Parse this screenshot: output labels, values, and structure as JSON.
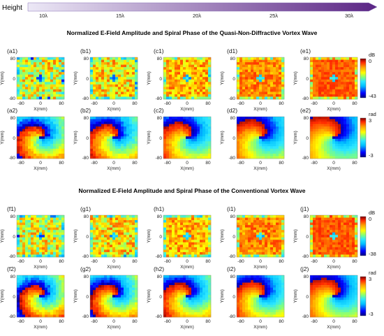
{
  "height_axis": {
    "label": "Height",
    "ticks": [
      "10λ",
      "15λ",
      "20λ",
      "25λ",
      "30λ"
    ]
  },
  "sections": [
    {
      "title": "Normalized E-Field Amplitude and Spiral Phase of the Quasi-Non-Diffractive Vortex Wave",
      "amplitude_panels": [
        "(a1)",
        "(b1)",
        "(c1)",
        "(d1)",
        "(e1)"
      ],
      "phase_panels": [
        "(a2)",
        "(b2)",
        "(c2)",
        "(d2)",
        "(e2)"
      ],
      "amplitude_colorbar": {
        "unit": "dB",
        "max": "0",
        "min": "-43"
      },
      "phase_colorbar": {
        "unit": "rad",
        "max": "3",
        "min": "-3"
      }
    },
    {
      "title": "Normalized E-Field Amplitude and Spiral Phase of the Conventional Vortex Wave",
      "amplitude_panels": [
        "(f1)",
        "(g1)",
        "(h1)",
        "(i1)",
        "(j1)"
      ],
      "phase_panels": [
        "(f2)",
        "(g2)",
        "(h2)",
        "(i2)",
        "(j2)"
      ],
      "amplitude_colorbar": {
        "unit": "dB",
        "max": "0",
        "min": "-38"
      },
      "phase_colorbar": {
        "unit": "rad",
        "max": "3",
        "min": "-3"
      }
    }
  ],
  "axes": {
    "xlabel": "X(mm)",
    "ylabel": "Y(mm)",
    "xticks": [
      "-80",
      "0",
      "80"
    ],
    "yticks": [
      "80",
      "0",
      "-80"
    ]
  },
  "colors": {
    "colormap": [
      "#00007f",
      "#0000ff",
      "#00bfff",
      "#2ee8ff",
      "#7fff7f",
      "#ffff00",
      "#ff9f00",
      "#ff2a00",
      "#800000"
    ],
    "height_arrow_start": "#ece8f6",
    "height_arrow_end": "#5b2585"
  }
}
